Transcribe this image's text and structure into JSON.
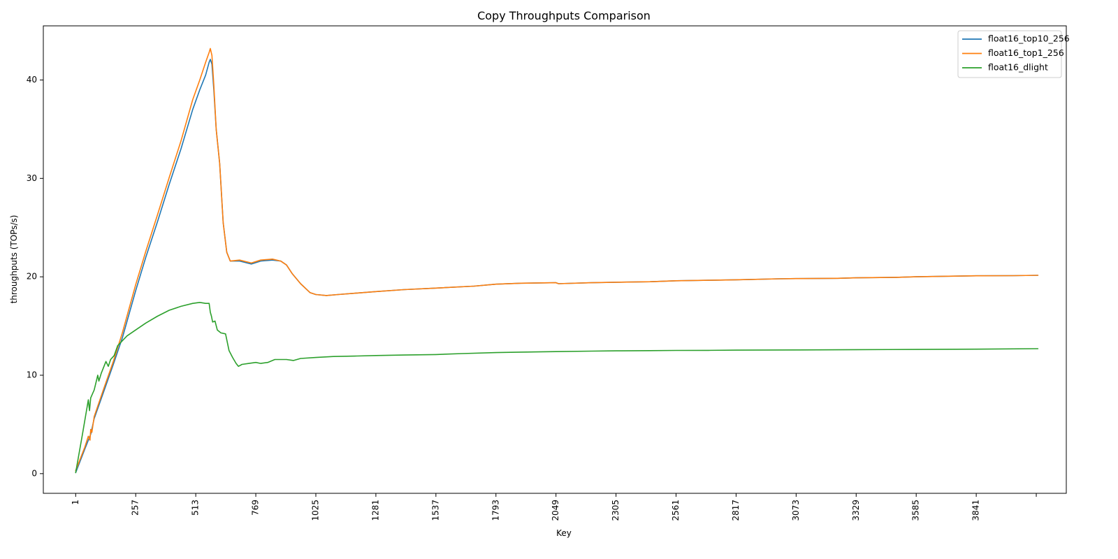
{
  "chart_data": {
    "type": "line",
    "title": "Copy Throughputs Comparison",
    "xlabel": "Key",
    "ylabel": "throughputs (TOPs/s)",
    "xlim": [
      -137,
      4225
    ],
    "ylim": [
      -2,
      45.5
    ],
    "x_ticks": [
      1,
      257,
      513,
      769,
      1025,
      1281,
      1537,
      1793,
      2049,
      2305,
      2561,
      2817,
      3073,
      3329,
      3585,
      3841,
      4097
    ],
    "x_tick_labels": [
      "1",
      "257",
      "513",
      "769",
      "1025",
      "1281",
      "1537",
      "1793",
      "2049",
      "2305",
      "2561",
      "2817",
      "3073",
      "3329",
      "3585",
      "3841",
      ""
    ],
    "y_ticks": [
      0,
      10,
      20,
      30,
      40
    ],
    "y_tick_labels": [
      "0",
      "10",
      "20",
      "30",
      "40"
    ],
    "grid": false,
    "legend_position": "top-right",
    "series": [
      {
        "name": "float16_top10_256",
        "color": "#1f77b4",
        "points": [
          [
            1,
            0.1
          ],
          [
            40,
            2.5
          ],
          [
            65,
            4.0
          ],
          [
            80,
            5.6
          ],
          [
            120,
            8.3
          ],
          [
            160,
            11.0
          ],
          [
            200,
            13.8
          ],
          [
            257,
            18.6
          ],
          [
            300,
            22.0
          ],
          [
            350,
            25.6
          ],
          [
            400,
            29.4
          ],
          [
            450,
            33.0
          ],
          [
            500,
            37.0
          ],
          [
            530,
            39.0
          ],
          [
            555,
            40.5
          ],
          [
            570,
            41.8
          ],
          [
            575,
            42.1
          ],
          [
            582,
            41.6
          ],
          [
            590,
            39.0
          ],
          [
            600,
            35.0
          ],
          [
            615,
            31.5
          ],
          [
            630,
            25.5
          ],
          [
            645,
            22.5
          ],
          [
            660,
            21.6
          ],
          [
            700,
            21.6
          ],
          [
            750,
            21.3
          ],
          [
            790,
            21.6
          ],
          [
            840,
            21.7
          ],
          [
            875,
            21.6
          ],
          [
            900,
            21.2
          ],
          [
            925,
            20.3
          ],
          [
            960,
            19.3
          ],
          [
            1000,
            18.4
          ],
          [
            1025,
            18.2
          ],
          [
            1070,
            18.1
          ],
          [
            1120,
            18.2
          ],
          [
            1200,
            18.35
          ],
          [
            1281,
            18.5
          ],
          [
            1400,
            18.7
          ],
          [
            1537,
            18.85
          ],
          [
            1700,
            19.05
          ],
          [
            1793,
            19.25
          ],
          [
            1900,
            19.35
          ],
          [
            2049,
            19.4
          ],
          [
            2060,
            19.3
          ],
          [
            2200,
            19.4
          ],
          [
            2305,
            19.45
          ],
          [
            2450,
            19.5
          ],
          [
            2561,
            19.6
          ],
          [
            2700,
            19.65
          ],
          [
            2817,
            19.7
          ],
          [
            3000,
            19.8
          ],
          [
            3073,
            19.82
          ],
          [
            3250,
            19.85
          ],
          [
            3329,
            19.9
          ],
          [
            3500,
            19.95
          ],
          [
            3585,
            20.0
          ],
          [
            3700,
            20.05
          ],
          [
            3841,
            20.1
          ],
          [
            4000,
            20.12
          ],
          [
            4104,
            20.15
          ]
        ]
      },
      {
        "name": "float16_top1_256",
        "color": "#ff7f0e",
        "points": [
          [
            1,
            0.3
          ],
          [
            40,
            2.7
          ],
          [
            55,
            3.8
          ],
          [
            62,
            3.4
          ],
          [
            65,
            4.5
          ],
          [
            70,
            4.2
          ],
          [
            80,
            5.8
          ],
          [
            120,
            8.6
          ],
          [
            160,
            11.3
          ],
          [
            200,
            14.3
          ],
          [
            257,
            19.2
          ],
          [
            300,
            22.6
          ],
          [
            350,
            26.3
          ],
          [
            400,
            30.1
          ],
          [
            450,
            33.8
          ],
          [
            500,
            38.0
          ],
          [
            530,
            40.0
          ],
          [
            555,
            41.8
          ],
          [
            570,
            42.8
          ],
          [
            575,
            43.2
          ],
          [
            582,
            42.5
          ],
          [
            590,
            39.5
          ],
          [
            600,
            35.0
          ],
          [
            615,
            31.5
          ],
          [
            630,
            25.5
          ],
          [
            645,
            22.5
          ],
          [
            660,
            21.6
          ],
          [
            700,
            21.7
          ],
          [
            750,
            21.4
          ],
          [
            790,
            21.7
          ],
          [
            840,
            21.8
          ],
          [
            875,
            21.6
          ],
          [
            900,
            21.2
          ],
          [
            925,
            20.3
          ],
          [
            960,
            19.3
          ],
          [
            1000,
            18.4
          ],
          [
            1025,
            18.2
          ],
          [
            1070,
            18.1
          ],
          [
            1120,
            18.2
          ],
          [
            1200,
            18.35
          ],
          [
            1281,
            18.5
          ],
          [
            1400,
            18.7
          ],
          [
            1537,
            18.85
          ],
          [
            1700,
            19.05
          ],
          [
            1793,
            19.25
          ],
          [
            1900,
            19.35
          ],
          [
            2049,
            19.4
          ],
          [
            2060,
            19.3
          ],
          [
            2200,
            19.4
          ],
          [
            2305,
            19.45
          ],
          [
            2450,
            19.5
          ],
          [
            2561,
            19.6
          ],
          [
            2700,
            19.65
          ],
          [
            2817,
            19.7
          ],
          [
            3000,
            19.8
          ],
          [
            3073,
            19.82
          ],
          [
            3250,
            19.85
          ],
          [
            3329,
            19.9
          ],
          [
            3500,
            19.95
          ],
          [
            3585,
            20.0
          ],
          [
            3700,
            20.05
          ],
          [
            3841,
            20.1
          ],
          [
            4000,
            20.12
          ],
          [
            4104,
            20.15
          ]
        ]
      },
      {
        "name": "float16_dlight",
        "color": "#2ca02c",
        "points": [
          [
            1,
            0.1
          ],
          [
            30,
            4.0
          ],
          [
            55,
            7.5
          ],
          [
            60,
            6.4
          ],
          [
            65,
            7.7
          ],
          [
            80,
            8.5
          ],
          [
            95,
            10.0
          ],
          [
            100,
            9.4
          ],
          [
            110,
            10.2
          ],
          [
            130,
            11.4
          ],
          [
            140,
            10.9
          ],
          [
            150,
            11.6
          ],
          [
            165,
            12.0
          ],
          [
            180,
            13.0
          ],
          [
            200,
            13.5
          ],
          [
            220,
            14.0
          ],
          [
            257,
            14.6
          ],
          [
            300,
            15.3
          ],
          [
            350,
            16.0
          ],
          [
            400,
            16.6
          ],
          [
            450,
            17.0
          ],
          [
            500,
            17.3
          ],
          [
            530,
            17.4
          ],
          [
            555,
            17.3
          ],
          [
            570,
            17.3
          ],
          [
            575,
            16.4
          ],
          [
            580,
            16.0
          ],
          [
            585,
            15.4
          ],
          [
            595,
            15.5
          ],
          [
            605,
            14.6
          ],
          [
            620,
            14.3
          ],
          [
            640,
            14.2
          ],
          [
            655,
            12.5
          ],
          [
            670,
            11.8
          ],
          [
            685,
            11.2
          ],
          [
            695,
            10.9
          ],
          [
            710,
            11.1
          ],
          [
            740,
            11.2
          ],
          [
            769,
            11.3
          ],
          [
            790,
            11.2
          ],
          [
            820,
            11.3
          ],
          [
            850,
            11.6
          ],
          [
            900,
            11.6
          ],
          [
            930,
            11.5
          ],
          [
            960,
            11.7
          ],
          [
            1025,
            11.8
          ],
          [
            1100,
            11.9
          ],
          [
            1200,
            11.95
          ],
          [
            1281,
            12.0
          ],
          [
            1400,
            12.05
          ],
          [
            1537,
            12.1
          ],
          [
            1650,
            12.2
          ],
          [
            1793,
            12.3
          ],
          [
            1900,
            12.35
          ],
          [
            2049,
            12.4
          ],
          [
            2200,
            12.45
          ],
          [
            2305,
            12.48
          ],
          [
            2450,
            12.5
          ],
          [
            2561,
            12.52
          ],
          [
            2700,
            12.53
          ],
          [
            2817,
            12.55
          ],
          [
            3073,
            12.57
          ],
          [
            3329,
            12.6
          ],
          [
            3585,
            12.62
          ],
          [
            3841,
            12.65
          ],
          [
            4104,
            12.7
          ]
        ]
      }
    ]
  }
}
